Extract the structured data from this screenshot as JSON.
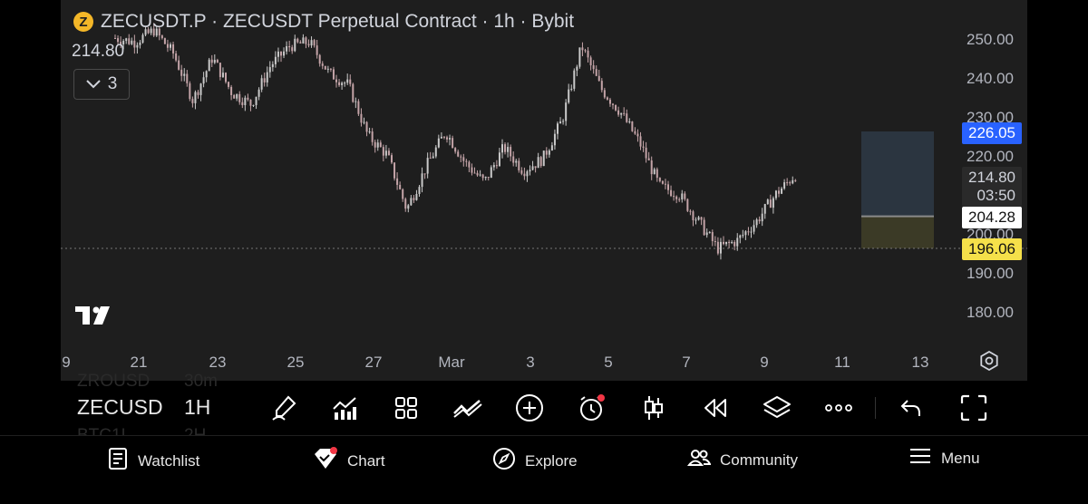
{
  "header": {
    "title": "ZECUSDT.P · ZECUSDT Perpetual Contract · 1h · Bybit",
    "coin_glyph": "Z",
    "last_price": "214.80",
    "collapse_count": "3"
  },
  "price_axis": {
    "ticks": [
      "250.00",
      "240.00",
      "230.00",
      "220.00",
      "210.00",
      "200.00",
      "190.00",
      "180.00"
    ],
    "current_price": "226.05",
    "last_price": "214.80",
    "countdown": "03:50",
    "entry_price": "204.28",
    "stop_price": "196.06"
  },
  "time_axis": {
    "labels": [
      "9",
      "21",
      "23",
      "25",
      "27",
      "Mar",
      "3",
      "5",
      "7",
      "9",
      "11",
      "13"
    ]
  },
  "chart_data": {
    "type": "candlestick",
    "symbol": "ZECUSDT.P",
    "interval": "1h",
    "exchange": "Bybit",
    "ylim": [
      176,
      256
    ],
    "x_labels": [
      "9",
      "21",
      "23",
      "25",
      "27",
      "Mar",
      "3",
      "5",
      "7",
      "9",
      "11",
      "13"
    ],
    "close_path": [
      {
        "date": "Feb 19",
        "price": 250
      },
      {
        "date": "Feb 20",
        "price": 249
      },
      {
        "date": "Feb 21",
        "price": 252
      },
      {
        "date": "Feb 22",
        "price": 246
      },
      {
        "date": "Feb 22.5",
        "price": 234
      },
      {
        "date": "Feb 23",
        "price": 245
      },
      {
        "date": "Feb 24",
        "price": 236
      },
      {
        "date": "Feb 24.6",
        "price": 233
      },
      {
        "date": "Feb 25",
        "price": 243
      },
      {
        "date": "Feb 25.6",
        "price": 248
      },
      {
        "date": "Feb 26",
        "price": 249
      },
      {
        "date": "Feb 26.5",
        "price": 241
      },
      {
        "date": "Feb 27",
        "price": 238
      },
      {
        "date": "Feb 27.4",
        "price": 225
      },
      {
        "date": "Feb 28",
        "price": 220
      },
      {
        "date": "Feb 28.5",
        "price": 206
      },
      {
        "date": "Mar 1",
        "price": 217
      },
      {
        "date": "Mar 1.3",
        "price": 226
      },
      {
        "date": "Mar 2",
        "price": 218
      },
      {
        "date": "Mar 2.5",
        "price": 213
      },
      {
        "date": "Mar 3",
        "price": 222
      },
      {
        "date": "Mar 3.6",
        "price": 216
      },
      {
        "date": "Mar 4",
        "price": 219
      },
      {
        "date": "Mar 4.5",
        "price": 229
      },
      {
        "date": "Mar 5",
        "price": 248
      },
      {
        "date": "Mar 5.6",
        "price": 237
      },
      {
        "date": "Mar 6",
        "price": 231
      },
      {
        "date": "Mar 6.6",
        "price": 223
      },
      {
        "date": "Mar 7",
        "price": 212
      },
      {
        "date": "Mar 7.5",
        "price": 210
      },
      {
        "date": "Mar 8",
        "price": 203
      },
      {
        "date": "Mar 8.3",
        "price": 196
      },
      {
        "date": "Mar 8.8",
        "price": 198
      },
      {
        "date": "Mar 9.3",
        "price": 203
      },
      {
        "date": "Mar 9.6",
        "price": 210
      },
      {
        "date": "Mar 9.9",
        "price": 215
      }
    ],
    "horizontal_line": 196.06,
    "position": {
      "target": 226.05,
      "entry": 204.28,
      "stop": 196.06
    },
    "colors": {
      "up": "#c9c9c9",
      "down": "#c4a4a8",
      "profit_zone": "#2b3540",
      "loss_zone": "#3b3a26"
    }
  },
  "toolbar": {
    "symbol": "ZECUSD",
    "timeframe": "1H",
    "ghost_top_symbol": "ZROUSD",
    "ghost_top_tf": "30m",
    "ghost_bottom_symbol": "BTC1L",
    "ghost_bottom_tf": "2H",
    "buttons": [
      "brush-icon",
      "indicators-icon",
      "layout-grid-icon",
      "compare-icon",
      "add-icon",
      "alert-clock-icon",
      "candles-icon",
      "replay-icon",
      "layers-icon",
      "more-icon",
      "undo-icon",
      "fullscreen-icon"
    ]
  },
  "bottom_nav": {
    "items": [
      "Watchlist",
      "Chart",
      "Explore",
      "Community",
      "Menu"
    ]
  }
}
